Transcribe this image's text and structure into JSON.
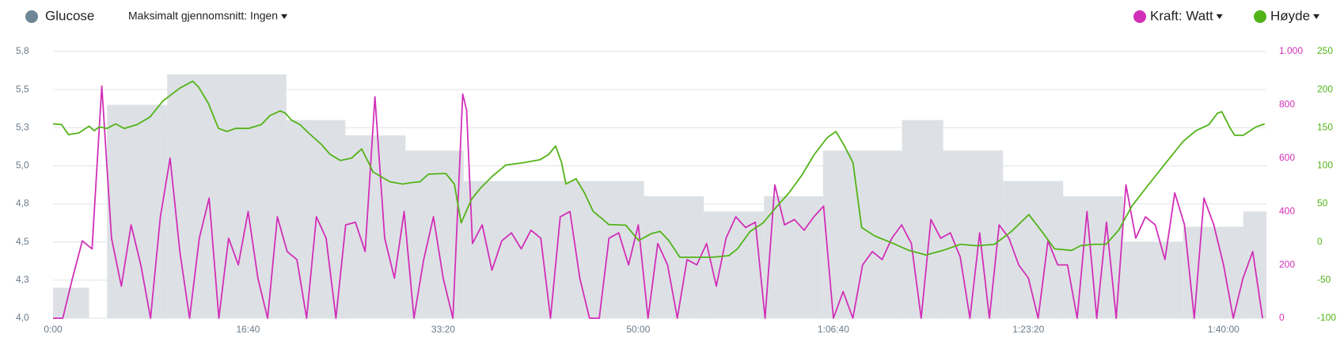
{
  "chart_data": {
    "type": "line",
    "dropdown": "Maksimalt gjennomsnitt: Ingen",
    "grid": true,
    "xlim": [
      0,
      6220
    ],
    "xticks": [
      {
        "value": 0,
        "label": "0:00"
      },
      {
        "value": 1000,
        "label": "16:40"
      },
      {
        "value": 2000,
        "label": "33:20"
      },
      {
        "value": 3000,
        "label": "50:00"
      },
      {
        "value": 4000,
        "label": "1:06:40"
      },
      {
        "value": 5000,
        "label": "1:23:20"
      },
      {
        "value": 6000,
        "label": "1:40:00"
      }
    ],
    "ylim": [
      4,
      5.75
    ],
    "yticks": [
      {
        "value": 4,
        "label": "4,0"
      },
      {
        "value": 4.25,
        "label": "4,3"
      },
      {
        "value": 4.5,
        "label": "4,5"
      },
      {
        "value": 4.75,
        "label": "4,8"
      },
      {
        "value": 5,
        "label": "5,0"
      },
      {
        "value": 5.25,
        "label": "5,3"
      },
      {
        "value": 5.5,
        "label": "5,5"
      },
      {
        "value": 5.75,
        "label": "5,8"
      }
    ],
    "y2lim": [
      0,
      1000
    ],
    "y2ticks": [
      0,
      200,
      400,
      600,
      800,
      {
        "value": 1000,
        "label": "1.000"
      }
    ],
    "y3lim": [
      -100,
      250
    ],
    "y3ticks": [
      -100,
      -50,
      0,
      50,
      100,
      150,
      200,
      250
    ],
    "series": [
      {
        "name": "Glucose",
        "type": "step",
        "axis": "y",
        "color": "#dde1e5",
        "legend_color": "#6e8696",
        "x": [
          0,
          185,
          277,
          585,
          1196,
          1499,
          1807,
          2105,
          3029,
          3336,
          3644,
          3947,
          4352,
          4563,
          4870,
          5178,
          5486,
          5793,
          6101
        ],
        "values": [
          4.2,
          4.0,
          5.4,
          5.6,
          5.3,
          5.2,
          5.1,
          4.9,
          4.8,
          4.7,
          4.8,
          5.1,
          5.3,
          5.1,
          4.9,
          4.8,
          4.5,
          4.6,
          4.7
        ]
      },
      {
        "name": "Kraft: Watt",
        "type": "line",
        "axis": "y2",
        "color": "#d22fb8",
        "x": [
          0,
          50,
          100,
          150,
          200,
          250,
          300,
          350,
          400,
          450,
          500,
          550,
          600,
          650,
          700,
          750,
          800,
          850,
          900,
          950,
          1000,
          1050,
          1100,
          1150,
          1200,
          1250,
          1300,
          1350,
          1400,
          1450,
          1500,
          1550,
          1600,
          1650,
          1700,
          1750,
          1800,
          1850,
          1900,
          1950,
          2000,
          2050,
          2080,
          2100,
          2120,
          2150,
          2200,
          2250,
          2300,
          2350,
          2400,
          2450,
          2500,
          2550,
          2600,
          2650,
          2700,
          2750,
          2800,
          2850,
          2900,
          2950,
          3000,
          3050,
          3100,
          3150,
          3200,
          3250,
          3300,
          3350,
          3400,
          3450,
          3500,
          3550,
          3600,
          3650,
          3700,
          3750,
          3800,
          3850,
          3900,
          3950,
          4000,
          4050,
          4100,
          4150,
          4200,
          4250,
          4300,
          4350,
          4400,
          4450,
          4500,
          4550,
          4600,
          4650,
          4700,
          4750,
          4800,
          4850,
          4900,
          4950,
          5000,
          5050,
          5100,
          5150,
          5200,
          5250,
          5300,
          5350,
          5400,
          5450,
          5500,
          5550,
          5600,
          5650,
          5700,
          5750,
          5800,
          5850,
          5900,
          5950,
          6000,
          6050,
          6100,
          6150,
          6200
        ],
        "values": [
          0,
          0,
          150,
          290,
          260,
          870,
          300,
          120,
          350,
          200,
          0,
          380,
          600,
          250,
          0,
          300,
          450,
          0,
          300,
          200,
          400,
          150,
          0,
          380,
          250,
          220,
          0,
          380,
          300,
          0,
          350,
          360,
          250,
          830,
          300,
          150,
          400,
          0,
          220,
          380,
          150,
          0,
          500,
          840,
          780,
          280,
          350,
          180,
          290,
          320,
          260,
          330,
          300,
          0,
          380,
          400,
          150,
          0,
          0,
          300,
          320,
          200,
          350,
          0,
          280,
          200,
          0,
          220,
          200,
          280,
          120,
          300,
          380,
          340,
          360,
          0,
          500,
          350,
          370,
          330,
          380,
          420,
          0,
          100,
          0,
          200,
          250,
          220,
          300,
          350,
          280,
          0,
          370,
          300,
          320,
          230,
          0,
          320,
          0,
          350,
          300,
          200,
          150,
          0,
          290,
          200,
          200,
          0,
          400,
          0,
          360,
          0,
          500,
          300,
          380,
          350,
          220,
          470,
          350,
          0,
          450,
          350,
          200,
          0,
          150,
          250,
          0
        ]
      },
      {
        "name": "Høyde",
        "type": "line",
        "axis": "y3",
        "color": "#52b318",
        "x": [
          0,
          44,
          79,
          132,
          185,
          211,
          237,
          277,
          321,
          365,
          431,
          497,
          563,
          651,
          716,
          747,
          796,
          848,
          892,
          936,
          1002,
          1068,
          1112,
          1165,
          1191,
          1222,
          1266,
          1310,
          1376,
          1420,
          1473,
          1530,
          1582,
          1618,
          1640,
          1727,
          1793,
          1837,
          1881,
          1925,
          2013,
          2057,
          2092,
          2145,
          2189,
          2255,
          2321,
          2409,
          2497,
          2541,
          2576,
          2607,
          2629,
          2681,
          2725,
          2769,
          2813,
          2848,
          2936,
          3002,
          3068,
          3112,
          3156,
          3213,
          3288,
          3376,
          3464,
          3508,
          3574,
          3640,
          3705,
          3771,
          3837,
          3903,
          3969,
          4013,
          4057,
          4101,
          4145,
          4211,
          4299,
          4387,
          4475,
          4563,
          4651,
          4738,
          4826,
          4914,
          5002,
          5068,
          5134,
          5222,
          5266,
          5332,
          5398,
          5464,
          5530,
          5618,
          5705,
          5793,
          5859,
          5925,
          5969,
          5991,
          6035,
          6057,
          6101,
          6167,
          6211
        ],
        "values": [
          155,
          154,
          141,
          143,
          152,
          146,
          151,
          149,
          155,
          149,
          154,
          164,
          185,
          202,
          211,
          203,
          182,
          149,
          145,
          149,
          149,
          154,
          166,
          172,
          169,
          160,
          154,
          143,
          128,
          115,
          107,
          110,
          122,
          104,
          92,
          79,
          76,
          78,
          79,
          89,
          90,
          76,
          25,
          56,
          70,
          87,
          101,
          104,
          108,
          115,
          126,
          104,
          76,
          83,
          64,
          40,
          31,
          23,
          22,
          2,
          11,
          14,
          2,
          -20,
          -20,
          -20,
          -18,
          -9,
          14,
          25,
          45,
          64,
          87,
          115,
          137,
          145,
          126,
          104,
          19,
          8,
          -1,
          -11,
          -17,
          -11,
          -3,
          -5,
          -3,
          14,
          36,
          14,
          -9,
          -11,
          -5,
          -3,
          -3,
          16,
          47,
          76,
          104,
          132,
          146,
          154,
          169,
          171,
          149,
          140,
          140,
          151,
          155
        ]
      }
    ]
  }
}
